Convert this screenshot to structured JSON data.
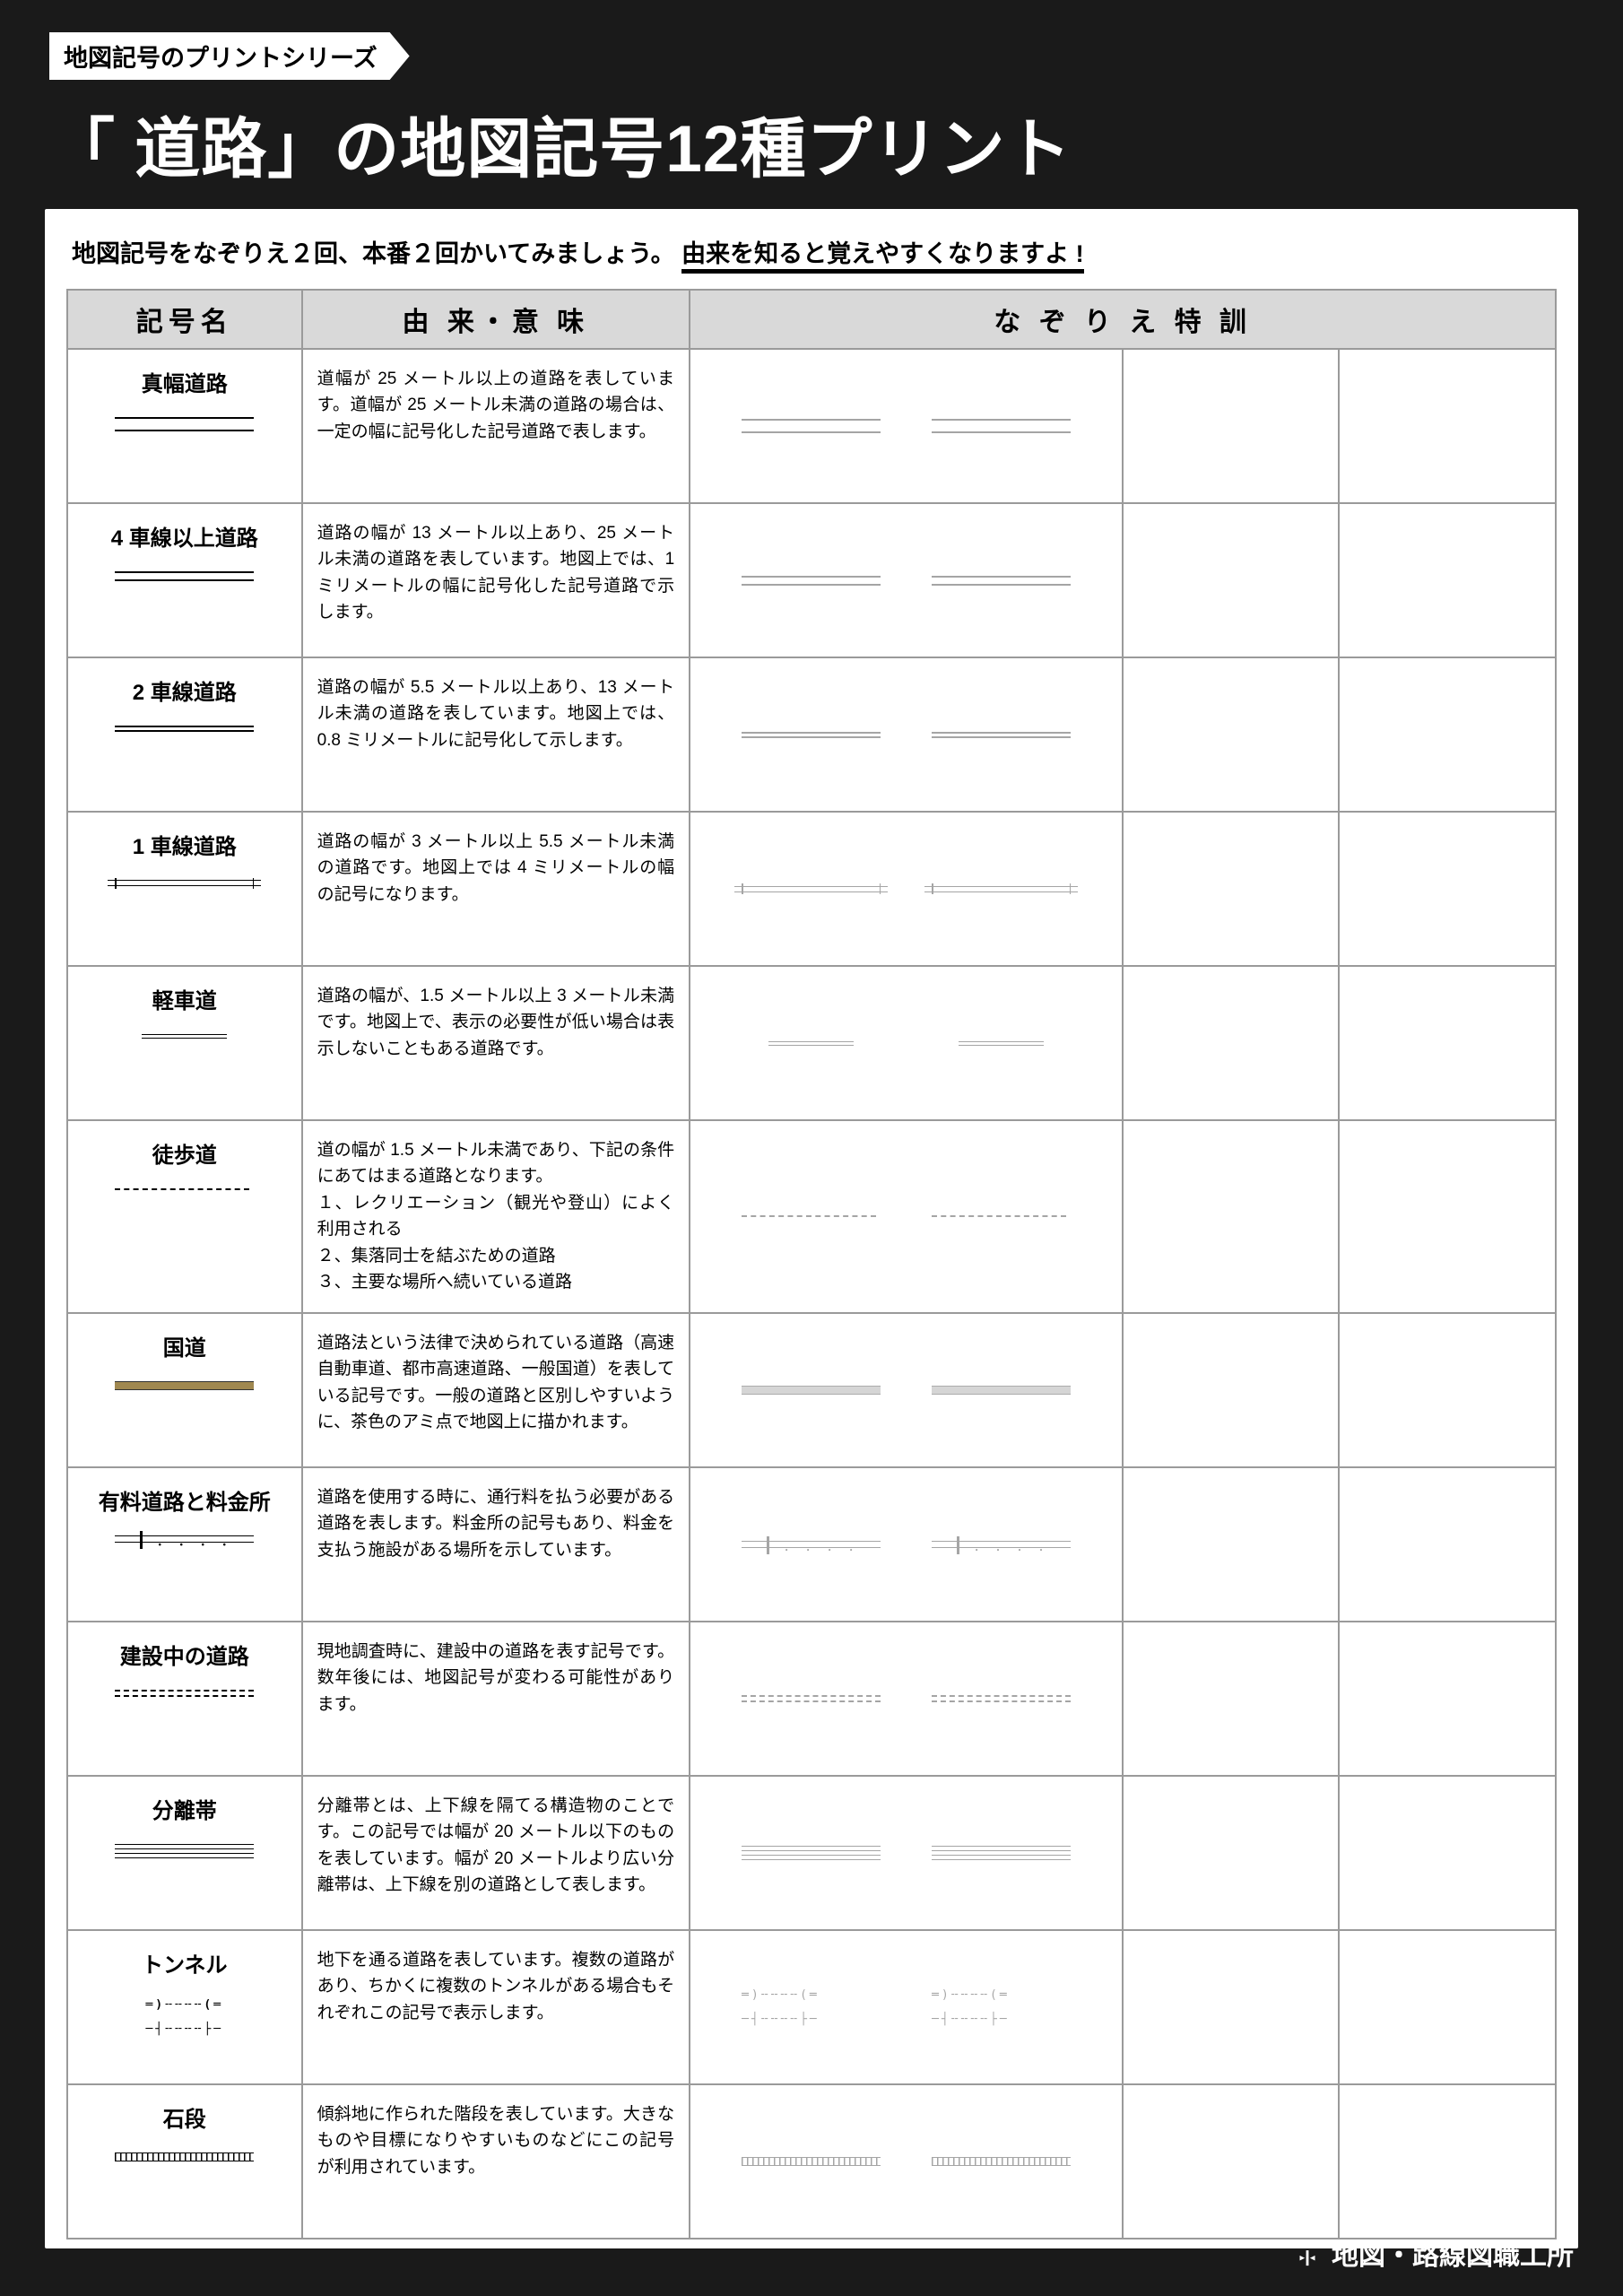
{
  "series_tag": "地図記号のプリントシリーズ",
  "title": "「 道路」の地図記号12種プリント",
  "instruction_plain": "地図記号をなぞりえ２回、本番２回かいてみましょう。",
  "instruction_emph": "由来を知ると覚えやすくなりますよ !",
  "headers": {
    "name": "記号名",
    "desc": "由 来・意 味",
    "trace": "な ぞ り え 特 訓"
  },
  "rows": [
    {
      "id": "wide",
      "name": "真幅道路",
      "desc": "道幅が 25 メートル以上の道路を表しています。道幅が 25 メートル未満の道路の場合は、一定の幅に記号化した記号道路で表します。"
    },
    {
      "id": "4lane",
      "name": "4 車線以上道路",
      "desc": "道路の幅が 13 メートル以上あり、25 メートル未満の道路を表しています。地図上では、1 ミリメートルの幅に記号化した記号道路で示します。"
    },
    {
      "id": "2lane",
      "name": "2 車線道路",
      "desc": "道路の幅が 5.5 メートル以上あり、13 メートル未満の道路を表しています。地図上では、0.8 ミリメートルに記号化して示します。"
    },
    {
      "id": "1lane",
      "name": "1 車線道路",
      "desc": "道路の幅が 3 メートル以上 5.5 メートル未満の道路です。地図上では 4 ミリメートルの幅の記号になります。"
    },
    {
      "id": "light",
      "name": "軽車道",
      "desc": "道路の幅が、1.5 メートル以上 3 メートル未満です。地図上で、表示の必要性が低い場合は表示しないこともある道路です。"
    },
    {
      "id": "foot",
      "name": "徒歩道",
      "desc": "道の幅が 1.5 メートル未満であり、下記の条件にあてはまる道路となります。\n１、レクリエーション（観光や登山）によく利用される\n２、集落同士を結ぶための道路\n３、主要な場所へ続いている道路"
    },
    {
      "id": "nat",
      "name": "国道",
      "desc": "道路法という法律で決められている道路（高速自動車道、都市高速道路、一般国道）を表している記号です。一般の道路と区別しやすいように、茶色のアミ点で地図上に描かれます。"
    },
    {
      "id": "toll",
      "name": "有料道路と料金所",
      "desc": "道路を使用する時に、通行料を払う必要がある道路を表します。料金所の記号もあり、料金を支払う施設がある場所を示しています。"
    },
    {
      "id": "build",
      "name": "建設中の道路",
      "desc": "現地調査時に、建設中の道路を表す記号です。数年後には、地図記号が変わる可能性があります。"
    },
    {
      "id": "sep",
      "name": "分離帯",
      "desc": "分離帯とは、上下線を隔てる構造物のことです。この記号では幅が 20 メートル以下のものを表しています。幅が 20 メートルより広い分離帯は、上下線を別の道路として表します。"
    },
    {
      "id": "tunnel",
      "name": "トンネル",
      "desc": "地下を通る道路を表しています。複数の道路があり、ちかくに複数のトンネルがある場合もそれぞれこの記号で表示します。"
    },
    {
      "id": "steps",
      "name": "石段",
      "desc": "傾斜地に作られた階段を表しています。大きなものや目標になりやすいものなどにこの記号が利用されています。"
    }
  ],
  "footer": "地図・路線図職工所",
  "colors": {
    "page_bg": "#1a1a1a",
    "sheet_bg": "#ffffff",
    "border": "#9a9a9a",
    "th_bg": "#d9d9d9",
    "national_road": "#a08850"
  }
}
